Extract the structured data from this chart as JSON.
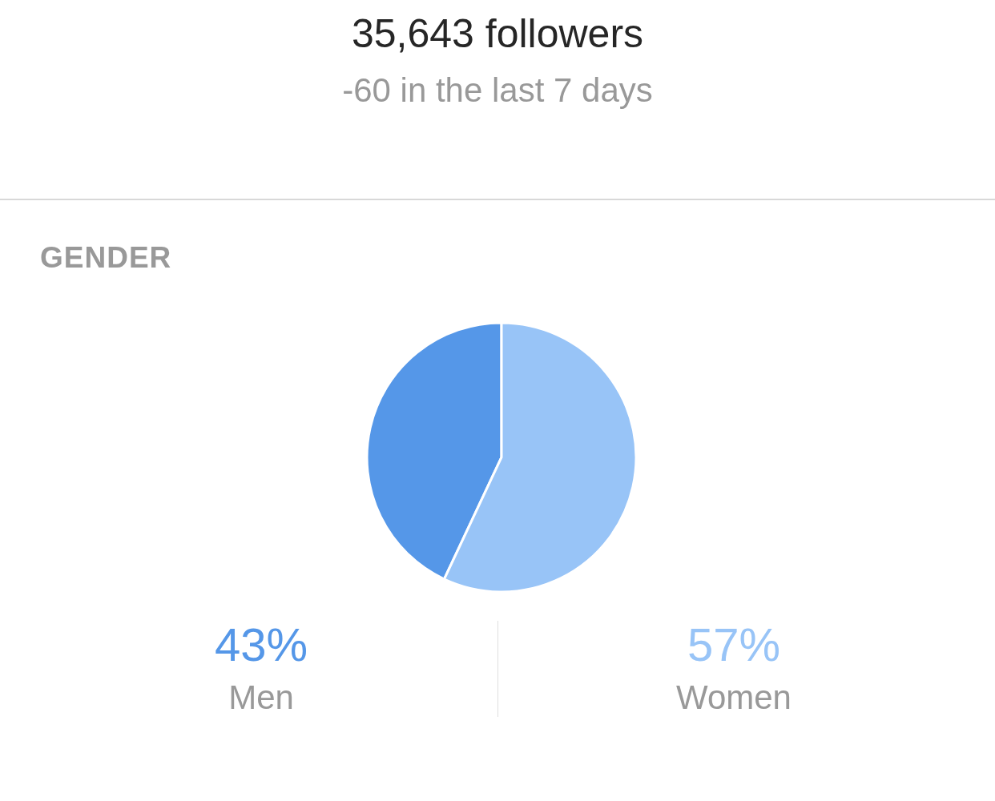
{
  "chart_data": {
    "type": "pie",
    "title": "35,643 followers",
    "subtitle": "-60 in the last 7 days",
    "annotations": [
      "GENDER"
    ],
    "categories": [
      "Men",
      "Women"
    ],
    "values": [
      43,
      57
    ],
    "colors": [
      "#5597e8",
      "#98c4f7"
    ],
    "value_labels": [
      "43%",
      "57%"
    ]
  }
}
